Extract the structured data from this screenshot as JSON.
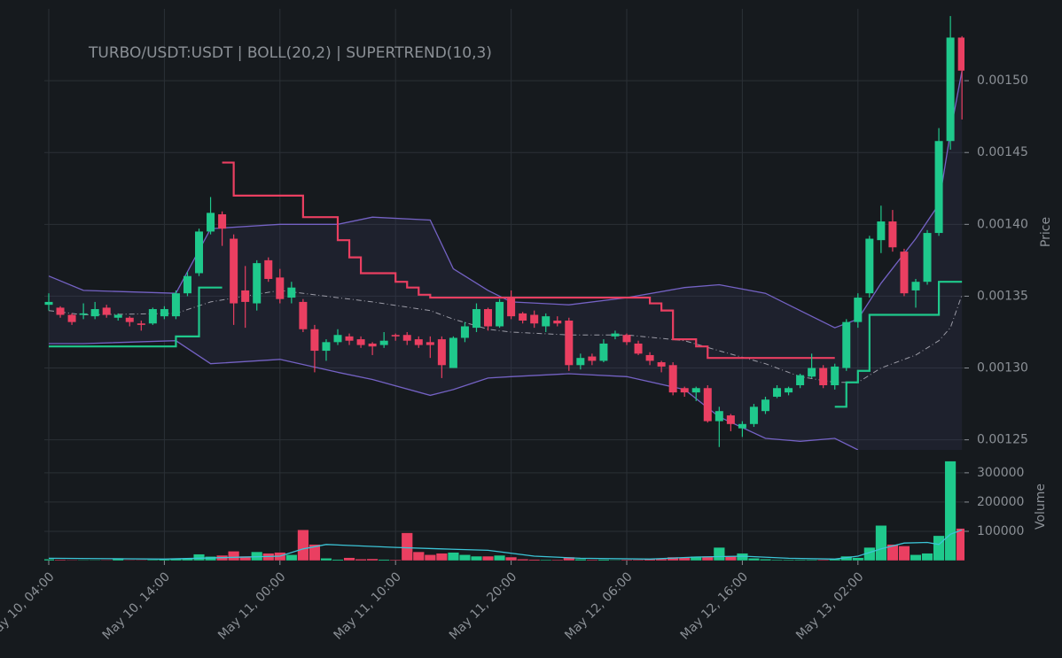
{
  "chart_data": {
    "type": "candlestick",
    "title": "TURBO/USDT:USDT | BOLL(20,2) | SUPERTREND(10,3)",
    "y_label": "Price",
    "y2_label": "Volume",
    "x": [
      "May 10, 04:00",
      "May 10, 05:00",
      "May 10, 06:00",
      "May 10, 07:00",
      "May 10, 08:00",
      "May 10, 09:00",
      "May 10, 10:00",
      "May 10, 11:00",
      "May 10, 12:00",
      "May 10, 13:00",
      "May 10, 14:00",
      "May 10, 15:00",
      "May 10, 16:00",
      "May 10, 17:00",
      "May 10, 18:00",
      "May 10, 19:00",
      "May 10, 20:00",
      "May 10, 21:00",
      "May 10, 22:00",
      "May 10, 23:00",
      "May 11, 00:00",
      "May 11, 01:00",
      "May 11, 02:00",
      "May 11, 03:00",
      "May 11, 04:00",
      "May 11, 05:00",
      "May 11, 06:00",
      "May 11, 07:00",
      "May 11, 08:00",
      "May 11, 09:00",
      "May 11, 10:00",
      "May 11, 11:00",
      "May 11, 12:00",
      "May 11, 13:00",
      "May 11, 14:00",
      "May 11, 15:00",
      "May 11, 16:00",
      "May 11, 17:00",
      "May 11, 18:00",
      "May 11, 19:00",
      "May 11, 20:00",
      "May 11, 21:00",
      "May 11, 22:00",
      "May 11, 23:00",
      "May 12, 00:00",
      "May 12, 01:00",
      "May 12, 02:00",
      "May 12, 03:00",
      "May 12, 04:00",
      "May 12, 05:00",
      "May 12, 06:00",
      "May 12, 07:00",
      "May 12, 08:00",
      "May 12, 09:00",
      "May 12, 10:00",
      "May 12, 11:00",
      "May 12, 12:00",
      "May 12, 13:00",
      "May 12, 14:00",
      "May 12, 15:00",
      "May 12, 16:00",
      "May 12, 17:00",
      "May 12, 18:00",
      "May 12, 19:00",
      "May 12, 20:00",
      "May 12, 21:00",
      "May 12, 22:00",
      "May 12, 23:00",
      "May 13, 00:00",
      "May 13, 01:00",
      "May 13, 02:00",
      "May 13, 03:00",
      "May 13, 04:00",
      "May 13, 05:00",
      "May 13, 06:00",
      "May 13, 07:00",
      "May 13, 08:00",
      "May 13, 09:00",
      "May 13, 10:00",
      "May 13, 11:00"
    ],
    "open": [
      0.001344,
      0.001342,
      0.001337,
      0.001337,
      0.001336,
      0.001342,
      0.001335,
      0.001335,
      0.001331,
      0.001331,
      0.001336,
      0.001336,
      0.001352,
      0.001366,
      0.001395,
      0.001407,
      0.00139,
      0.001354,
      0.001345,
      0.001375,
      0.001363,
      0.001349,
      0.001346,
      0.001327,
      0.001312,
      0.001318,
      0.001322,
      0.00132,
      0.001317,
      0.001316,
      0.001323,
      0.001323,
      0.00132,
      0.001318,
      0.00132,
      0.0013,
      0.001321,
      0.001328,
      0.001341,
      0.001329,
      0.001349,
      0.001338,
      0.001337,
      0.001329,
      0.001333,
      0.001333,
      0.001302,
      0.001308,
      0.001305,
      0.001322,
      0.001323,
      0.001317,
      0.001309,
      0.001304,
      0.001302,
      0.001286,
      0.001283,
      0.001286,
      0.001263,
      0.001267,
      0.001258,
      0.001261,
      0.00127,
      0.00128,
      0.001283,
      0.001288,
      0.001294,
      0.0013,
      0.001288,
      0.0013,
      0.001332,
      0.001352,
      0.001389,
      0.001402,
      0.001381,
      0.001354,
      0.00136,
      0.001394,
      0.001458,
      0.00153
    ],
    "high": [
      0.001352,
      0.001343,
      0.001338,
      0.001345,
      0.001346,
      0.001344,
      0.001338,
      0.001336,
      0.001333,
      0.001342,
      0.001343,
      0.001354,
      0.001367,
      0.001397,
      0.001419,
      0.001409,
      0.001393,
      0.001371,
      0.001375,
      0.001377,
      0.001369,
      0.00136,
      0.001348,
      0.00133,
      0.00132,
      0.001327,
      0.001324,
      0.001322,
      0.001318,
      0.001325,
      0.001324,
      0.001325,
      0.001322,
      0.001322,
      0.001322,
      0.001322,
      0.001332,
      0.001345,
      0.001342,
      0.001348,
      0.001354,
      0.001339,
      0.00134,
      0.001338,
      0.001336,
      0.001335,
      0.00131,
      0.00131,
      0.00132,
      0.001326,
      0.001324,
      0.001319,
      0.001311,
      0.001305,
      0.001304,
      0.001287,
      0.001287,
      0.001288,
      0.001273,
      0.001268,
      0.001263,
      0.001275,
      0.00128,
      0.001288,
      0.001287,
      0.001296,
      0.00131,
      0.001302,
      0.001303,
      0.001334,
      0.001352,
      0.001392,
      0.001413,
      0.00141,
      0.001383,
      0.001362,
      0.001396,
      0.001467,
      0.001545,
      0.001531
    ],
    "low": [
      0.00134,
      0.001335,
      0.00133,
      0.001334,
      0.001334,
      0.001335,
      0.001333,
      0.001329,
      0.001326,
      0.00133,
      0.001334,
      0.001334,
      0.00135,
      0.001364,
      0.001393,
      0.001385,
      0.00133,
      0.001328,
      0.00134,
      0.00136,
      0.001345,
      0.001345,
      0.001325,
      0.001297,
      0.001305,
      0.001316,
      0.001316,
      0.001314,
      0.001309,
      0.001314,
      0.001319,
      0.001316,
      0.001314,
      0.001307,
      0.001293,
      0.0013,
      0.001318,
      0.001325,
      0.001326,
      0.001328,
      0.001334,
      0.001331,
      0.001328,
      0.001325,
      0.001329,
      0.001298,
      0.001299,
      0.001302,
      0.001304,
      0.00132,
      0.001316,
      0.001309,
      0.001302,
      0.001297,
      0.001281,
      0.00128,
      0.001277,
      0.001262,
      0.001245,
      0.001256,
      0.001252,
      0.001259,
      0.001268,
      0.001279,
      0.001281,
      0.001286,
      0.001293,
      0.001286,
      0.001285,
      0.001298,
      0.001328,
      0.001349,
      0.00138,
      0.001381,
      0.00135,
      0.001342,
      0.001358,
      0.001392,
      0.001452,
      0.001473
    ],
    "close": [
      0.001346,
      0.001337,
      0.001332,
      0.001338,
      0.001341,
      0.001337,
      0.001337,
      0.001332,
      0.00133,
      0.001341,
      0.001341,
      0.001352,
      0.001364,
      0.001395,
      0.001408,
      0.001397,
      0.001345,
      0.001346,
      0.001373,
      0.001362,
      0.001348,
      0.001356,
      0.001327,
      0.001312,
      0.001318,
      0.001323,
      0.001319,
      0.001316,
      0.001315,
      0.001319,
      0.001322,
      0.001319,
      0.001316,
      0.001316,
      0.001302,
      0.001321,
      0.001329,
      0.001341,
      0.001329,
      0.001346,
      0.001336,
      0.001333,
      0.001331,
      0.001336,
      0.001331,
      0.001302,
      0.001307,
      0.001305,
      0.001317,
      0.001324,
      0.001318,
      0.00131,
      0.001305,
      0.001301,
      0.001283,
      0.001283,
      0.001286,
      0.001263,
      0.00127,
      0.001261,
      0.001261,
      0.001273,
      0.001278,
      0.001286,
      0.001286,
      0.001295,
      0.0013,
      0.001288,
      0.001301,
      0.001332,
      0.001349,
      0.00139,
      0.001402,
      0.001384,
      0.001352,
      0.00136,
      0.001394,
      0.001458,
      0.00153,
      0.001507
    ],
    "volume": [
      5000,
      3000,
      2000,
      2000,
      2000,
      2000,
      8000,
      2000,
      2000,
      3000,
      4000,
      6000,
      8000,
      22000,
      14000,
      18000,
      32000,
      15000,
      30000,
      25000,
      28000,
      20000,
      105000,
      55000,
      8000,
      4000,
      10000,
      5000,
      6000,
      4000,
      3000,
      95000,
      30000,
      20000,
      25000,
      28000,
      20000,
      15000,
      15000,
      18000,
      12000,
      5000,
      4000,
      3000,
      3000,
      12000,
      5000,
      3000,
      4000,
      2000,
      3000,
      3000,
      5000,
      6000,
      12000,
      10000,
      14000,
      15000,
      45000,
      15000,
      25000,
      8000,
      5000,
      3000,
      3000,
      3000,
      3000,
      3000,
      5000,
      15000,
      10000,
      45000,
      120000,
      55000,
      50000,
      20000,
      25000,
      85000,
      340000,
      110000
    ],
    "up_color": "#1fc98c",
    "down_color": "#ea3f61",
    "bollinger": {
      "color": "#7462c4",
      "mid_color": "#9a9aa5",
      "fill": "rgba(60,60,100,0.22)",
      "upper": {
        "x": [
          "May 10, 04:00",
          "May 10, 07:00",
          "May 10, 15:00",
          "May 10, 18:00",
          "May 11, 00:00",
          "May 11, 05:00",
          "May 11, 08:00",
          "May 11, 13:00",
          "May 11, 15:00",
          "May 11, 18:00",
          "May 11, 20:00",
          "May 12, 01:00",
          "May 12, 06:00",
          "May 12, 11:00",
          "May 12, 14:00",
          "May 12, 18:00",
          "May 12, 21:00",
          "May 13, 00:00",
          "May 13, 02:00",
          "May 13, 04:00",
          "May 13, 07:00",
          "May 13, 09:00",
          "May 13, 10:00",
          "May 13, 11:00"
        ],
        "values": [
          0.001364,
          0.001354,
          0.001352,
          0.001397,
          0.0014,
          0.0014,
          0.001405,
          0.001403,
          0.001369,
          0.001354,
          0.001346,
          0.001344,
          0.001349,
          0.001356,
          0.001358,
          0.001352,
          0.00134,
          0.001328,
          0.001334,
          0.001359,
          0.00139,
          0.001414,
          0.001464,
          0.001507
        ]
      },
      "mid": {
        "x": [
          "May 10, 04:00",
          "May 10, 07:00",
          "May 10, 15:00",
          "May 10, 18:00",
          "May 11, 00:00",
          "May 11, 05:00",
          "May 11, 08:00",
          "May 11, 13:00",
          "May 11, 15:00",
          "May 11, 18:00",
          "May 11, 20:00",
          "May 12, 01:00",
          "May 12, 06:00",
          "May 12, 11:00",
          "May 12, 14:00",
          "May 12, 18:00",
          "May 12, 21:00",
          "May 13, 00:00",
          "May 13, 02:00",
          "May 13, 04:00",
          "May 13, 07:00",
          "May 13, 09:00",
          "May 13, 10:00",
          "May 13, 11:00"
        ],
        "values": [
          0.00134,
          0.001337,
          0.001338,
          0.001346,
          0.001354,
          0.001349,
          0.001346,
          0.00134,
          0.001334,
          0.001327,
          0.001325,
          0.001323,
          0.001323,
          0.001319,
          0.001312,
          0.001303,
          0.001294,
          0.00129,
          0.00129,
          0.0013,
          0.001309,
          0.001319,
          0.001328,
          0.001351
        ]
      },
      "lower": {
        "x": [
          "May 10, 04:00",
          "May 10, 07:00",
          "May 10, 15:00",
          "May 10, 18:00",
          "May 11, 00:00",
          "May 11, 05:00",
          "May 11, 08:00",
          "May 11, 13:00",
          "May 11, 15:00",
          "May 11, 18:00",
          "May 11, 20:00",
          "May 12, 01:00",
          "May 12, 06:00",
          "May 12, 11:00",
          "May 12, 14:00",
          "May 12, 18:00",
          "May 12, 21:00",
          "May 13, 00:00",
          "May 13, 02:00"
        ],
        "values": [
          0.001317,
          0.001317,
          0.001319,
          0.001303,
          0.001306,
          0.001297,
          0.001292,
          0.001281,
          0.001285,
          0.001293,
          0.001294,
          0.001296,
          0.001294,
          0.001285,
          0.001266,
          0.001251,
          0.001249,
          0.001251,
          0.001243
        ]
      }
    },
    "supertrend": [
      {
        "color": "#1fc98c",
        "x": [
          "May 10, 04:00",
          "May 10, 15:00",
          "May 10, 17:00",
          "May 10, 19:00"
        ],
        "values": [
          0.001315,
          0.001322,
          0.001356,
          0.001356
        ]
      },
      {
        "color": "#ea3f61",
        "x": [
          "May 10, 19:00",
          "May 10, 20:00",
          "May 11, 02:00",
          "May 11, 05:00",
          "May 11, 06:00",
          "May 11, 07:00",
          "May 11, 10:00",
          "May 11, 11:00",
          "May 11, 12:00",
          "May 11, 13:00",
          "May 12, 08:00",
          "May 12, 09:00",
          "May 12, 10:00",
          "May 12, 12:00",
          "May 12, 13:00",
          "May 13, 00:00"
        ],
        "values": [
          0.001443,
          0.00142,
          0.001405,
          0.001389,
          0.001377,
          0.001366,
          0.00136,
          0.001356,
          0.001351,
          0.001349,
          0.001345,
          0.00134,
          0.00132,
          0.001315,
          0.001307,
          0.001307
        ]
      },
      {
        "color": "#1fc98c",
        "x": [
          "May 13, 00:00",
          "May 13, 01:00",
          "May 13, 02:00",
          "May 13, 03:00",
          "May 13, 09:00",
          "May 13, 11:00"
        ],
        "values": [
          0.001273,
          0.00129,
          0.001298,
          0.001337,
          0.00136,
          0.00136
        ]
      }
    ],
    "volume_ma": {
      "color": "#3cc4d6",
      "x": [
        "May 10, 04:00",
        "May 10, 14:00",
        "May 11, 00:00",
        "May 11, 02:00",
        "May 11, 04:00",
        "May 11, 10:00",
        "May 11, 14:00",
        "May 11, 18:00",
        "May 11, 22:00",
        "May 12, 02:00",
        "May 12, 08:00",
        "May 12, 12:00",
        "May 12, 16:00",
        "May 12, 20:00",
        "May 13, 00:00",
        "May 13, 02:00",
        "May 13, 04:00",
        "May 13, 06:00",
        "May 13, 08:00",
        "May 13, 09:00",
        "May 13, 10:00",
        "May 13, 11:00"
      ],
      "values": [
        8000,
        5000,
        15000,
        40000,
        55000,
        45000,
        40000,
        35000,
        15000,
        8000,
        5000,
        12000,
        15000,
        8000,
        5000,
        15000,
        40000,
        60000,
        62000,
        55000,
        90000,
        105000
      ]
    },
    "ylim": [
      0.001243,
      0.00155
    ],
    "yticks": [
      {
        "value": 0.00125,
        "label": "0.00125"
      },
      {
        "value": 0.0013,
        "label": "0.00130"
      },
      {
        "value": 0.00135,
        "label": "0.00135"
      },
      {
        "value": 0.0014,
        "label": "0.00140"
      },
      {
        "value": 0.00145,
        "label": "0.00145"
      },
      {
        "value": 0.0015,
        "label": "0.00150"
      }
    ],
    "y2lim": [
      0,
      342000
    ],
    "y2ticks": [
      100000,
      200000,
      300000
    ],
    "xticks": [
      "May 10, 04:00",
      "May 10, 14:00",
      "May 11, 00:00",
      "May 11, 10:00",
      "May 11, 20:00",
      "May 12, 06:00",
      "May 12, 16:00",
      "May 13, 02:00"
    ],
    "grid": true
  }
}
